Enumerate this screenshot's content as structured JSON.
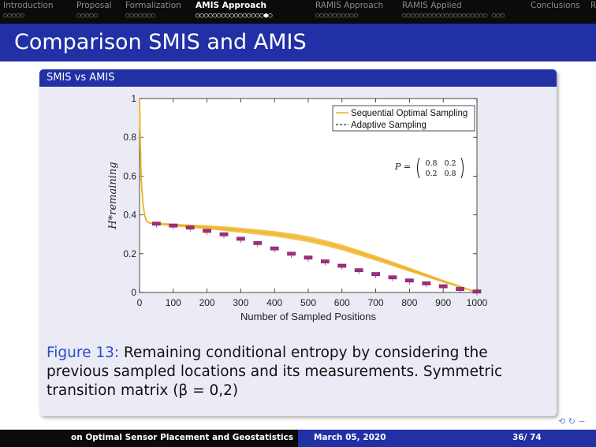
{
  "header": {
    "sections": [
      {
        "label": "Introduction",
        "dots": "○○○○○",
        "active": false
      },
      {
        "label": "Proposal",
        "dots": "○○○○○",
        "active": false
      },
      {
        "label": "Formalization",
        "dots": "○○○○○○○",
        "active": false
      },
      {
        "label": "AMIS Approach",
        "dots": "○○○○○○○○○○○○○○○○●○",
        "active": true
      },
      {
        "label": "RAMIS Approach",
        "dots": "○○○○○○○○○○",
        "active": false
      },
      {
        "label": "RAMIS Applied",
        "dots": "○○○○○○○○○○○○○○○○○○○○ ○○○",
        "active": false
      },
      {
        "label": "Conclusions",
        "dots": "",
        "active": false
      },
      {
        "label": "R",
        "dots": "",
        "active": false
      }
    ]
  },
  "slide": {
    "title": "Comparison SMIS and AMIS",
    "block_title": "SMIS vs AMIS",
    "caption_label": "Figure 13:",
    "caption_text": "Remaining conditional entropy by considering the previous sampled locations and its measurements. Symmetric transition matrix (β = 0,2)"
  },
  "footer": {
    "left": "on Optimal Sensor Placement and Geostatistics",
    "date": "March 05, 2020",
    "page": "36/ 74"
  },
  "nav_symbols": "⟲ ↻ ∽",
  "colors": {
    "accent": "#2230a6",
    "sequential": "#f0b429",
    "adaptive": "#6b2a7a",
    "adaptive_median": "#e0184a"
  },
  "chart_data": {
    "type": "line",
    "xlabel": "Number of Sampled Positions",
    "ylabel": "H*remaining",
    "xlim": [
      0,
      1000
    ],
    "ylim": [
      0,
      1
    ],
    "xticks": [
      0,
      100,
      200,
      300,
      400,
      500,
      600,
      700,
      800,
      900,
      1000
    ],
    "yticks": [
      0,
      0.2,
      0.4,
      0.6,
      0.8,
      1
    ],
    "ytick_labels": [
      "0",
      "0.2",
      "0.4",
      "0.6",
      "0.8",
      "1"
    ],
    "legend": [
      "Sequential Optimal Sampling",
      "Adaptive Sampling"
    ],
    "legend_position": "top-right",
    "annotation": "P = ( 0.8 0.2 ; 0.2 0.8 )",
    "series": [
      {
        "name": "Sequential Optimal Sampling",
        "x": [
          0,
          2,
          5,
          10,
          15,
          20,
          30,
          50,
          100,
          150,
          200,
          250,
          300,
          350,
          400,
          450,
          500,
          550,
          600,
          650,
          700,
          750,
          800,
          850,
          900,
          950,
          1000
        ],
        "y": [
          1.0,
          0.8,
          0.58,
          0.46,
          0.4,
          0.37,
          0.358,
          0.355,
          0.348,
          0.342,
          0.336,
          0.329,
          0.321,
          0.312,
          0.302,
          0.29,
          0.275,
          0.255,
          0.232,
          0.205,
          0.177,
          0.148,
          0.118,
          0.088,
          0.058,
          0.03,
          0.0
        ],
        "band_width": 0.012
      },
      {
        "name": "Adaptive Sampling",
        "x": [
          50,
          100,
          150,
          200,
          250,
          300,
          350,
          400,
          450,
          500,
          550,
          600,
          650,
          700,
          750,
          800,
          850,
          900,
          950,
          1000
        ],
        "y": [
          0.355,
          0.345,
          0.335,
          0.318,
          0.3,
          0.277,
          0.255,
          0.227,
          0.2,
          0.18,
          0.16,
          0.138,
          0.115,
          0.095,
          0.078,
          0.062,
          0.047,
          0.032,
          0.018,
          0.005
        ]
      }
    ]
  }
}
